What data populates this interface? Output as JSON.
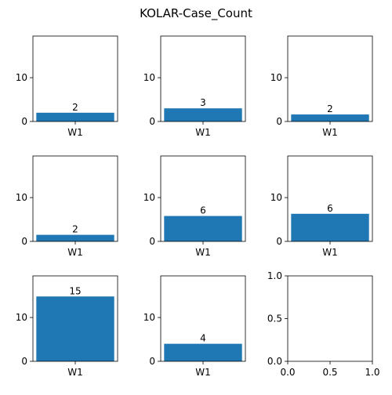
{
  "chart_data": {
    "title": "KOLAR-Case_Count",
    "type": "bar",
    "bar_color": "#1f77b4",
    "panels": [
      {
        "type": "bar",
        "categories": [
          "W1"
        ],
        "values": [
          2
        ],
        "data_labels": [
          "2"
        ],
        "ylim": [
          0,
          19.5
        ],
        "yticks": [
          0,
          10
        ]
      },
      {
        "type": "bar",
        "categories": [
          "W1"
        ],
        "values": [
          3
        ],
        "data_labels": [
          "3"
        ],
        "ylim": [
          0,
          19.5
        ],
        "yticks": [
          0,
          10
        ]
      },
      {
        "type": "bar",
        "categories": [
          "W1"
        ],
        "values": [
          1.6
        ],
        "data_labels": [
          "2"
        ],
        "ylim": [
          0,
          19.5
        ],
        "yticks": [
          0,
          10
        ]
      },
      {
        "type": "bar",
        "categories": [
          "W1"
        ],
        "values": [
          1.5
        ],
        "data_labels": [
          "2"
        ],
        "ylim": [
          0,
          19.5
        ],
        "yticks": [
          0,
          10
        ]
      },
      {
        "type": "bar",
        "categories": [
          "W1"
        ],
        "values": [
          5.8
        ],
        "data_labels": [
          "6"
        ],
        "ylim": [
          0,
          19.5
        ],
        "yticks": [
          0,
          10
        ]
      },
      {
        "type": "bar",
        "categories": [
          "W1"
        ],
        "values": [
          6.3
        ],
        "data_labels": [
          "6"
        ],
        "ylim": [
          0,
          19.5
        ],
        "yticks": [
          0,
          10
        ]
      },
      {
        "type": "bar",
        "categories": [
          "W1"
        ],
        "values": [
          14.8
        ],
        "data_labels": [
          "15"
        ],
        "ylim": [
          0,
          19.5
        ],
        "yticks": [
          0,
          10
        ]
      },
      {
        "type": "bar",
        "categories": [
          "W1"
        ],
        "values": [
          4
        ],
        "data_labels": [
          "4"
        ],
        "ylim": [
          0,
          19.5
        ],
        "yticks": [
          0,
          10
        ]
      },
      {
        "type": "empty",
        "categories": [],
        "values": [],
        "data_labels": [],
        "xlim": [
          0,
          1
        ],
        "ylim": [
          0,
          1
        ],
        "xticks": [
          "0.0",
          "0.5",
          "1.0"
        ],
        "yticks": [
          "0.0",
          "0.5",
          "1.0"
        ]
      }
    ]
  }
}
